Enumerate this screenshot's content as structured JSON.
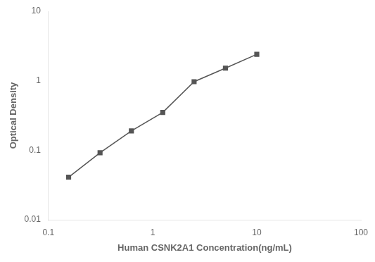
{
  "chart_data": {
    "type": "line",
    "x": [
      0.156,
      0.3125,
      0.625,
      1.25,
      2.5,
      5.0,
      10.0
    ],
    "values": [
      0.041,
      0.092,
      0.19,
      0.35,
      0.97,
      1.52,
      2.4
    ],
    "xlabel": "Human CSNK2A1 Concentration(ng/mL)",
    "ylabel": "Optical Density",
    "xlim": [
      0.1,
      100
    ],
    "ylim": [
      0.01,
      10
    ],
    "xticks": [
      0.1,
      1,
      10,
      100
    ],
    "yticks": [
      0.01,
      0.1,
      1,
      10
    ],
    "log": true,
    "grid": false,
    "color": "#555555",
    "marker": "square",
    "line_style": "solid"
  }
}
